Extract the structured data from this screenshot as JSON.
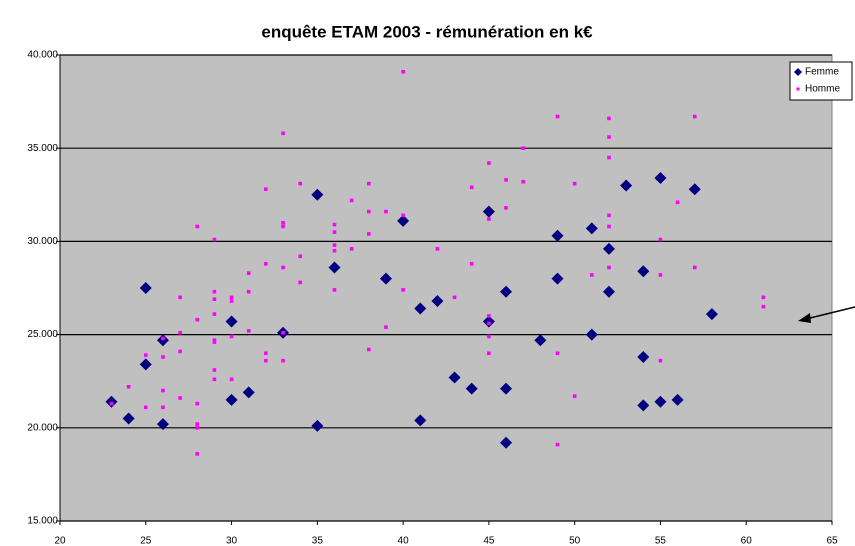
{
  "chart_data": {
    "type": "scatter",
    "title": "enquête ETAM 2003 - rémunération en k€",
    "xlim": [
      20,
      65
    ],
    "xticks": [
      20,
      25,
      30,
      35,
      40,
      45,
      50,
      55,
      60,
      65
    ],
    "ylim": [
      15,
      40
    ],
    "yticks": [
      {
        "value": 15,
        "label": "15.000"
      },
      {
        "value": 20,
        "label": "20.000"
      },
      {
        "value": 25,
        "label": "25.000"
      },
      {
        "value": 30,
        "label": "30.000"
      },
      {
        "value": 35,
        "label": "35.000"
      },
      {
        "value": 40,
        "label": "40.000"
      }
    ],
    "grid": true,
    "legend": "top-right",
    "series": [
      {
        "name": "Femme",
        "color": "#000080",
        "marker": "diamond",
        "x": [
          23,
          24,
          25,
          25,
          26,
          26,
          30,
          30,
          31,
          33,
          35,
          35,
          36,
          39,
          40,
          41,
          41,
          42,
          43,
          44,
          45,
          45,
          46,
          46,
          46,
          48,
          49,
          49,
          51,
          51,
          52,
          52,
          53,
          54,
          54,
          54,
          55,
          55,
          56,
          57,
          58
        ],
        "values": [
          21.4,
          20.5,
          27.5,
          23.4,
          24.7,
          20.2,
          25.7,
          21.5,
          21.9,
          25.1,
          32.5,
          20.1,
          28.6,
          28.0,
          31.1,
          26.4,
          20.4,
          26.8,
          22.7,
          22.1,
          31.6,
          25.7,
          27.3,
          22.1,
          19.2,
          24.7,
          30.3,
          28.0,
          30.7,
          25.0,
          29.6,
          27.3,
          33.0,
          28.4,
          23.8,
          21.2,
          33.4,
          21.4,
          21.5,
          32.8,
          26.1
        ]
      },
      {
        "name": "Homme",
        "color": "#ff00ff",
        "marker": "square",
        "x": [
          23,
          24,
          25,
          25,
          26,
          26,
          26,
          26,
          27,
          27,
          27,
          27,
          28,
          28,
          28,
          28,
          28,
          28,
          29,
          29,
          29,
          29,
          29,
          29,
          29,
          29,
          30,
          30,
          30,
          30,
          31,
          31,
          31,
          32,
          32,
          32,
          32,
          33,
          33,
          33,
          33,
          33,
          33,
          34,
          34,
          34,
          36,
          36,
          36,
          36,
          36,
          37,
          37,
          38,
          38,
          38,
          38,
          39,
          39,
          40,
          40,
          40,
          42,
          43,
          44,
          44,
          45,
          45,
          45,
          45,
          45,
          45,
          46,
          46,
          47,
          47,
          49,
          49,
          49,
          50,
          50,
          51,
          52,
          52,
          52,
          52,
          52,
          52,
          55,
          55,
          55,
          56,
          57,
          57,
          61,
          61
        ],
        "values": [
          21.3,
          22.2,
          23.9,
          21.1,
          23.8,
          22.0,
          21.1,
          24.8,
          27.0,
          25.1,
          24.1,
          21.6,
          30.8,
          25.8,
          21.3,
          20.2,
          20.0,
          18.6,
          30.1,
          27.3,
          26.9,
          26.1,
          24.7,
          24.6,
          23.1,
          22.6,
          27.0,
          26.8,
          24.9,
          22.6,
          28.3,
          27.3,
          25.2,
          32.8,
          28.8,
          24.0,
          23.6,
          35.8,
          31.0,
          30.8,
          28.6,
          25.1,
          23.6,
          33.1,
          29.2,
          27.8,
          30.9,
          30.5,
          29.8,
          29.5,
          27.4,
          32.2,
          29.6,
          33.1,
          31.6,
          30.4,
          24.2,
          31.6,
          25.4,
          39.1,
          31.4,
          27.4,
          29.6,
          27.0,
          32.9,
          28.8,
          34.2,
          31.2,
          26.0,
          25.6,
          24.9,
          24.0,
          33.3,
          31.8,
          35.0,
          33.2,
          36.7,
          24.0,
          19.1,
          33.1,
          21.7,
          28.2,
          36.6,
          35.6,
          34.5,
          31.4,
          30.8,
          28.6,
          30.1,
          28.2,
          23.6,
          32.1,
          36.7,
          28.6,
          27.0,
          26.5
        ]
      }
    ]
  }
}
